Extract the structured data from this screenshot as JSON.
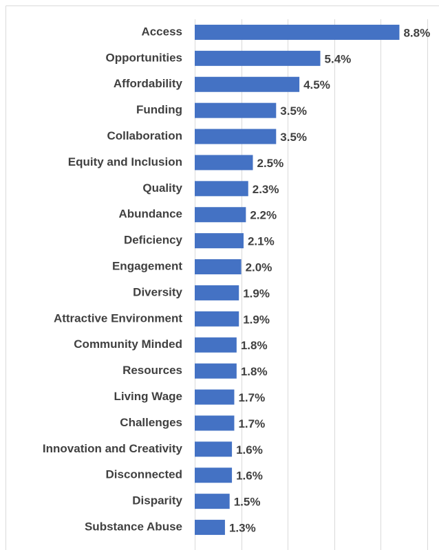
{
  "chart_data": {
    "type": "barh",
    "categories": [
      "Access",
      "Opportunities",
      "Affordability",
      "Funding",
      "Collaboration",
      "Equity and Inclusion",
      "Quality",
      "Abundance",
      "Deficiency",
      "Engagement",
      "Diversity",
      "Attractive Environment",
      "Community Minded",
      "Resources",
      "Living Wage",
      "Challenges",
      "Innovation and Creativity",
      "Disconnected",
      "Disparity",
      "Substance Abuse"
    ],
    "values": [
      8.8,
      5.4,
      4.5,
      3.5,
      3.5,
      2.5,
      2.3,
      2.2,
      2.1,
      2.0,
      1.9,
      1.9,
      1.8,
      1.8,
      1.7,
      1.7,
      1.6,
      1.6,
      1.5,
      1.3
    ],
    "value_labels": [
      "8.8%",
      "5.4%",
      "4.5%",
      "3.5%",
      "3.5%",
      "2.5%",
      "2.3%",
      "2.2%",
      "2.1%",
      "2.0%",
      "1.9%",
      "1.9%",
      "1.8%",
      "1.8%",
      "1.7%",
      "1.7%",
      "1.6%",
      "1.6%",
      "1.5%",
      "1.3%"
    ],
    "color": "#4472c4",
    "xlim": [
      0,
      10
    ],
    "xticks": [
      0,
      2,
      4,
      6,
      8,
      10
    ],
    "grid": true
  }
}
